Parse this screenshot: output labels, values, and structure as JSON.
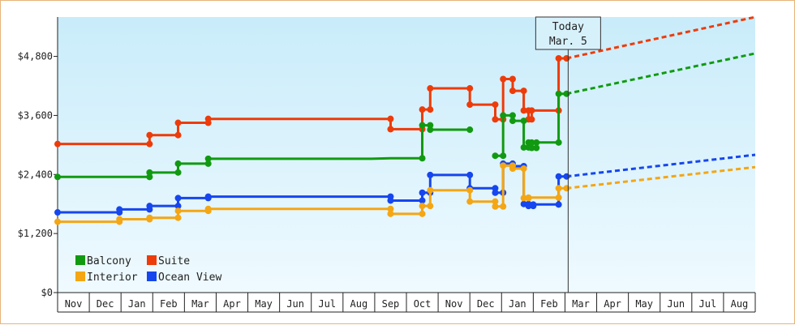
{
  "chart_data": {
    "type": "line",
    "y_ticks": [
      "$0",
      "$1,200",
      "$2,400",
      "$3,600",
      "$4,800"
    ],
    "y_tick_values": [
      0,
      1200,
      2400,
      3600,
      4800
    ],
    "ylim": [
      0,
      5600
    ],
    "months": [
      "Nov",
      "Dec",
      "Jan",
      "Feb",
      "Mar",
      "Apr",
      "May",
      "Jun",
      "Jul",
      "Aug",
      "Sep",
      "Oct",
      "Nov",
      "Dec",
      "Jan",
      "Feb",
      "Mar",
      "Apr",
      "May",
      "Jun",
      "Jul",
      "Aug"
    ],
    "today": {
      "line1": "Today",
      "line2": "Mar. 5",
      "month_index": 16.1
    },
    "legend": [
      {
        "key": "balcony",
        "label": "Balcony"
      },
      {
        "key": "suite",
        "label": "Suite"
      },
      {
        "key": "interior",
        "label": "Interior"
      },
      {
        "key": "ocean",
        "label": "Ocean View"
      }
    ],
    "series": [
      {
        "key": "suite",
        "name": "Suite",
        "color": "#ee3b0a",
        "segments": [
          [
            [
              0,
              3020
            ],
            [
              2.9,
              3020
            ],
            [
              2.9,
              3200
            ],
            [
              3.8,
              3200
            ],
            [
              3.8,
              3450
            ],
            [
              4.75,
              3450
            ],
            [
              4.75,
              3530
            ],
            [
              7.1,
              3530
            ],
            [
              10.5,
              3530
            ],
            [
              10.5,
              3320
            ],
            [
              11.5,
              3320
            ],
            [
              11.5,
              3720
            ],
            [
              11.75,
              3720
            ],
            [
              11.75,
              4150
            ],
            [
              13.0,
              4150
            ],
            [
              13.0,
              3820
            ],
            [
              13.8,
              3820
            ],
            [
              13.8,
              3520
            ],
            [
              14.05,
              3520
            ],
            [
              14.05,
              4340
            ],
            [
              14.35,
              4340
            ],
            [
              14.35,
              4100
            ],
            [
              14.7,
              4100
            ],
            [
              14.7,
              3700
            ],
            [
              14.85,
              3700
            ],
            [
              14.85,
              3520
            ],
            [
              14.95,
              3520
            ],
            [
              14.95,
              3700
            ],
            [
              15.8,
              3700
            ],
            [
              15.8,
              4760
            ],
            [
              16.05,
              4760
            ]
          ]
        ],
        "forecast": [
          [
            16.05,
            4760
          ],
          [
            22,
            5600
          ]
        ]
      },
      {
        "key": "balcony",
        "name": "Balcony",
        "color": "#119a11",
        "segments": [
          [
            [
              0,
              2350
            ],
            [
              2.9,
              2350
            ],
            [
              2.9,
              2440
            ],
            [
              3.8,
              2440
            ],
            [
              3.8,
              2620
            ],
            [
              4.75,
              2620
            ],
            [
              4.75,
              2720
            ],
            [
              7.1,
              2720
            ],
            [
              9.9,
              2720
            ],
            [
              10.5,
              2730
            ],
            [
              11.5,
              2730
            ],
            [
              11.5,
              3400
            ],
            [
              11.75,
              3400
            ],
            [
              11.75,
              3310
            ],
            [
              13.0,
              3310
            ]
          ],
          [
            [
              13.8,
              2780
            ],
            [
              14.05,
              2780
            ],
            [
              14.05,
              3600
            ],
            [
              14.35,
              3600
            ],
            [
              14.35,
              3490
            ],
            [
              14.7,
              3490
            ],
            [
              14.7,
              2950
            ],
            [
              14.85,
              2950
            ],
            [
              14.85,
              3050
            ],
            [
              14.95,
              3050
            ],
            [
              14.95,
              2940
            ],
            [
              15.1,
              2940
            ],
            [
              15.1,
              3050
            ],
            [
              15.8,
              3050
            ],
            [
              15.8,
              4040
            ],
            [
              16.05,
              4040
            ]
          ]
        ],
        "forecast": [
          [
            16.05,
            4040
          ],
          [
            22,
            4860
          ]
        ]
      },
      {
        "key": "ocean",
        "name": "Ocean View",
        "color": "#1646ee",
        "segments": [
          [
            [
              0,
              1630
            ],
            [
              1.95,
              1630
            ],
            [
              1.95,
              1690
            ],
            [
              2.9,
              1690
            ],
            [
              2.9,
              1760
            ],
            [
              3.8,
              1760
            ],
            [
              3.8,
              1920
            ],
            [
              4.75,
              1920
            ],
            [
              4.75,
              1950
            ],
            [
              7.1,
              1950
            ],
            [
              9.9,
              1950
            ],
            [
              10.5,
              1950
            ],
            [
              10.5,
              1870
            ],
            [
              11.5,
              1870
            ],
            [
              11.5,
              2030
            ],
            [
              11.75,
              2030
            ],
            [
              11.75,
              2390
            ],
            [
              13.0,
              2390
            ],
            [
              13.0,
              2120
            ],
            [
              13.8,
              2120
            ],
            [
              13.8,
              2030
            ],
            [
              14.05,
              2030
            ],
            [
              14.05,
              2620
            ],
            [
              14.35,
              2620
            ],
            [
              14.35,
              2570
            ],
            [
              14.7,
              2570
            ],
            [
              14.7,
              1800
            ],
            [
              14.85,
              1800
            ],
            [
              14.85,
              1760
            ],
            [
              15.0,
              1760
            ],
            [
              15.0,
              1790
            ],
            [
              15.8,
              1790
            ],
            [
              15.8,
              2360
            ],
            [
              16.05,
              2360
            ]
          ]
        ],
        "forecast": [
          [
            16.05,
            2360
          ],
          [
            22,
            2800
          ]
        ]
      },
      {
        "key": "interior",
        "name": "Interior",
        "color": "#f4a614",
        "segments": [
          [
            [
              0,
              1440
            ],
            [
              1.95,
              1440
            ],
            [
              1.95,
              1490
            ],
            [
              2.9,
              1490
            ],
            [
              2.9,
              1520
            ],
            [
              3.8,
              1520
            ],
            [
              3.8,
              1660
            ],
            [
              4.75,
              1660
            ],
            [
              4.75,
              1700
            ],
            [
              7.1,
              1700
            ],
            [
              9.9,
              1700
            ],
            [
              10.5,
              1700
            ],
            [
              10.5,
              1600
            ],
            [
              11.5,
              1600
            ],
            [
              11.5,
              1760
            ],
            [
              11.75,
              1760
            ],
            [
              11.75,
              2080
            ],
            [
              13.0,
              2080
            ],
            [
              13.0,
              1850
            ],
            [
              13.8,
              1850
            ],
            [
              13.8,
              1750
            ],
            [
              14.05,
              1750
            ],
            [
              14.05,
              2580
            ],
            [
              14.35,
              2580
            ],
            [
              14.35,
              2520
            ],
            [
              14.7,
              2520
            ],
            [
              14.7,
              1920
            ],
            [
              14.85,
              1920
            ],
            [
              14.85,
              1930
            ],
            [
              15.8,
              1930
            ],
            [
              15.8,
              2120
            ],
            [
              16.05,
              2120
            ]
          ]
        ],
        "forecast": [
          [
            16.05,
            2120
          ],
          [
            22,
            2550
          ]
        ]
      }
    ]
  }
}
